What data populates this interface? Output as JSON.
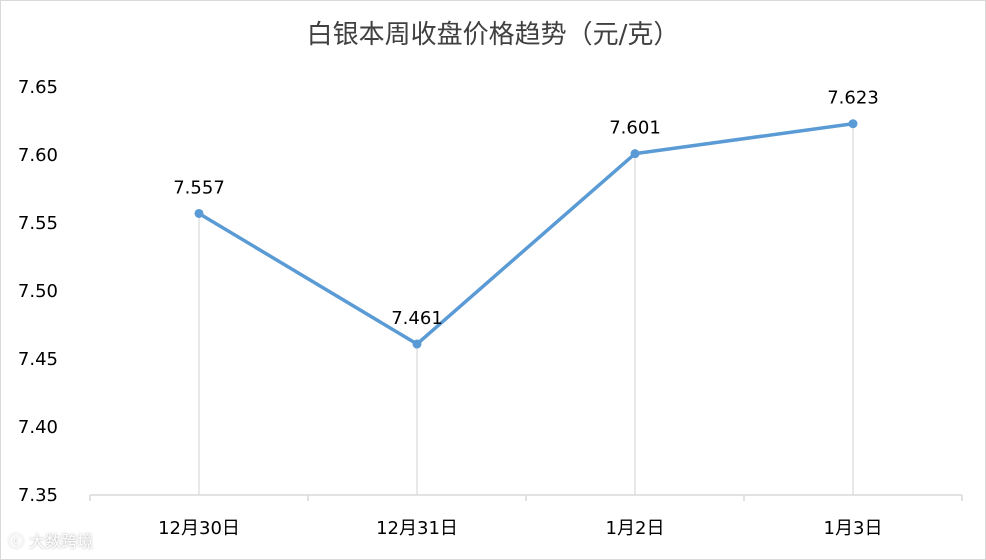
{
  "chart_data": {
    "type": "line",
    "title": "白银本周收盘价格趋势（元/克）",
    "categories": [
      "12月30日",
      "12月31日",
      "1月2日",
      "1月3日"
    ],
    "series": [
      {
        "values": [
          7.557,
          7.461,
          7.601,
          7.623
        ]
      }
    ],
    "data_labels": [
      "7.557",
      "7.461",
      "7.601",
      "7.623"
    ],
    "y_ticks": [
      "7.35",
      "7.40",
      "7.45",
      "7.50",
      "7.55",
      "7.60",
      "7.65"
    ],
    "ylim": [
      7.35,
      7.65
    ],
    "grid": false,
    "drop_lines": true,
    "line_color": "#5b9bd5",
    "drop_line_color": "#d9d9d9"
  },
  "watermark": {
    "text": "大数跨境"
  }
}
